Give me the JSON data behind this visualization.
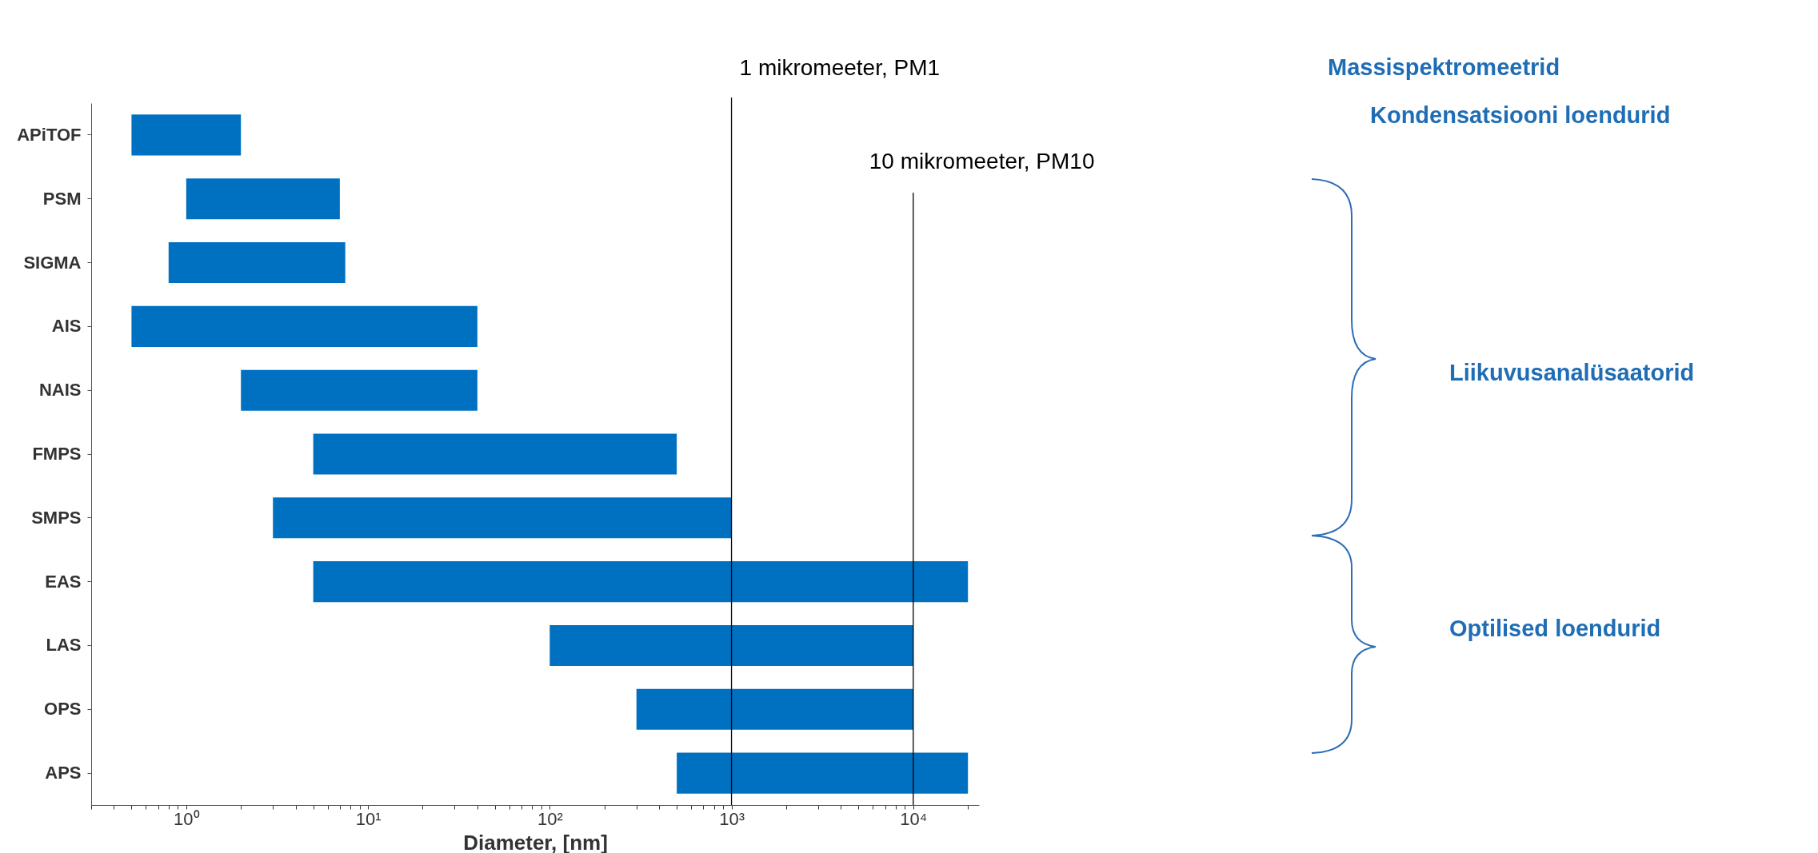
{
  "chart_data": {
    "type": "bar",
    "orientation": "horizontal",
    "xlabel": "Diameter, [nm]",
    "log": "x",
    "categories": [
      "APiTOF",
      "PSM",
      "SIGMA",
      "AIS",
      "NAIS",
      "FMPS",
      "SMPS",
      "EAS",
      "LAS",
      "OPS",
      "APS"
    ],
    "base": [
      0.5,
      1,
      0.8,
      0.5,
      2,
      5,
      3,
      5,
      100,
      300,
      500
    ],
    "values": [
      1.5,
      6,
      6.7,
      39.5,
      38,
      495,
      997,
      19995,
      9900,
      9700,
      19500
    ],
    "color": "#0070c0",
    "xlim": [
      0.3,
      23000
    ],
    "xticks": [
      {
        "value": 0.3,
        "label": null
      },
      {
        "value": 0.4,
        "label": null
      },
      {
        "value": 0.5,
        "label": null
      },
      {
        "value": 0.6,
        "label": null
      },
      {
        "value": 0.7,
        "label": null
      },
      {
        "value": 0.8,
        "label": null
      },
      {
        "value": 0.9,
        "label": null
      },
      {
        "value": 1,
        "label": "10⁰"
      },
      {
        "value": 2,
        "label": null
      },
      {
        "value": 3,
        "label": null
      },
      {
        "value": 4,
        "label": null
      },
      {
        "value": 5,
        "label": null
      },
      {
        "value": 6,
        "label": null
      },
      {
        "value": 7,
        "label": null
      },
      {
        "value": 8,
        "label": null
      },
      {
        "value": 9,
        "label": null
      },
      {
        "value": 10,
        "label": "10¹"
      },
      {
        "value": 20,
        "label": null
      },
      {
        "value": 30,
        "label": null
      },
      {
        "value": 40,
        "label": null
      },
      {
        "value": 50,
        "label": null
      },
      {
        "value": 60,
        "label": null
      },
      {
        "value": 70,
        "label": null
      },
      {
        "value": 80,
        "label": null
      },
      {
        "value": 90,
        "label": null
      },
      {
        "value": 100,
        "label": "10²"
      },
      {
        "value": 200,
        "label": null
      },
      {
        "value": 300,
        "label": null
      },
      {
        "value": 400,
        "label": null
      },
      {
        "value": 500,
        "label": null
      },
      {
        "value": 600,
        "label": null
      },
      {
        "value": 700,
        "label": null
      },
      {
        "value": 800,
        "label": null
      },
      {
        "value": 900,
        "label": null
      },
      {
        "value": 1000,
        "label": "10³"
      },
      {
        "value": 2000,
        "label": null
      },
      {
        "value": 3000,
        "label": null
      },
      {
        "value": 4000,
        "label": null
      },
      {
        "value": 5000,
        "label": null
      },
      {
        "value": 6000,
        "label": null
      },
      {
        "value": 7000,
        "label": null
      },
      {
        "value": 8000,
        "label": null
      },
      {
        "value": 9000,
        "label": null
      },
      {
        "value": 10000,
        "label": "10⁴"
      },
      {
        "value": 20000,
        "label": null
      }
    ],
    "ref_lines": [
      {
        "axis": "x",
        "value": 1000,
        "label": "1 mikromeeter, PM1",
        "color": "#000000"
      },
      {
        "axis": "x",
        "value": 10000,
        "label": "10 mikromeeter, PM10",
        "color": "#000000"
      }
    ],
    "annotations": [
      "Massispektromeetrid",
      "Kondensatsiooni loendurid",
      "Liikuvusanalüsaatorid",
      "Optilised loendurid"
    ]
  }
}
